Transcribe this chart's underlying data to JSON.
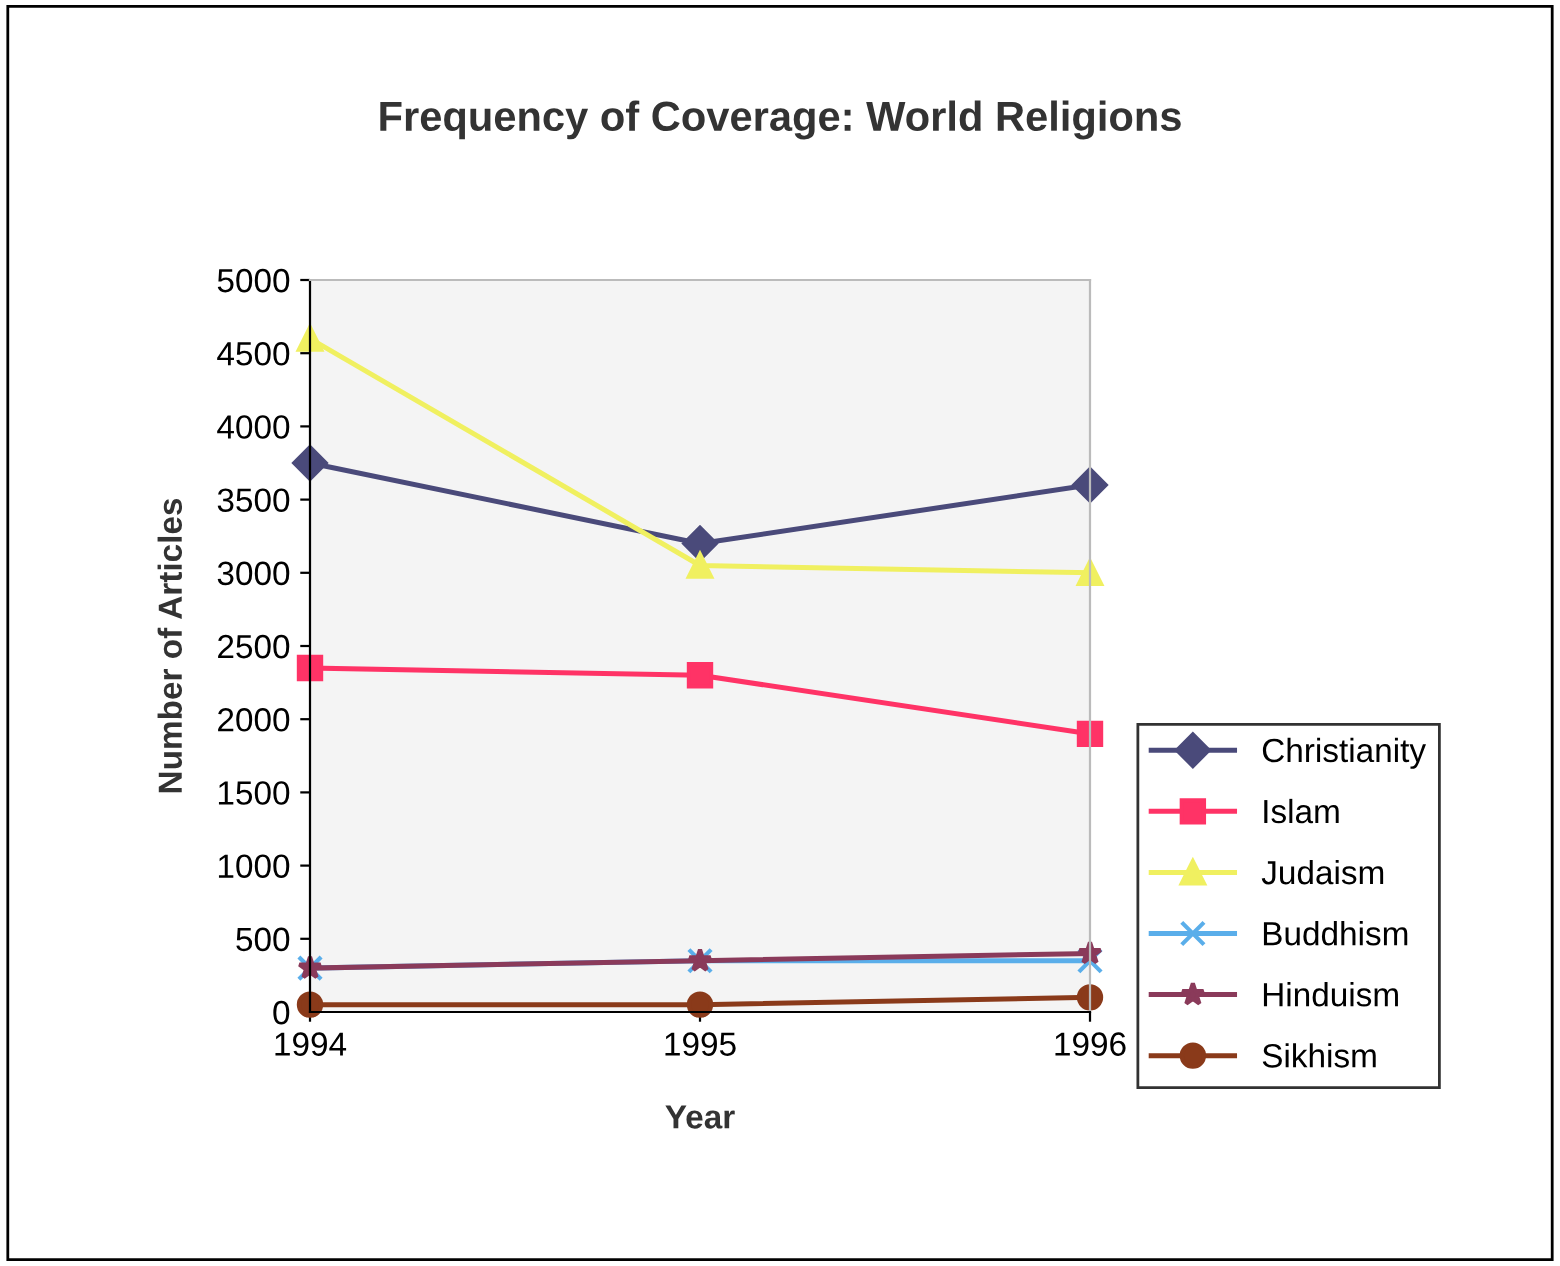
{
  "chart_data": {
    "type": "line",
    "title": "Frequency of Coverage: World Religions",
    "xlabel": "Year",
    "ylabel": "Number of Articles",
    "x": [
      1994,
      1995,
      1996
    ],
    "xlim": [
      1994,
      1996
    ],
    "xticks": [
      1994,
      1995,
      1996
    ],
    "ylim": [
      0,
      5000
    ],
    "yticks": [
      0,
      500,
      1000,
      1500,
      2000,
      2500,
      3000,
      3500,
      4000,
      4500,
      5000
    ],
    "grid": false,
    "legend": "right",
    "series": [
      {
        "name": "Christianity",
        "color": "#4a4a7a",
        "marker": "diamond",
        "values": [
          3750,
          3200,
          3600
        ]
      },
      {
        "name": "Islam",
        "color": "#ff3366",
        "marker": "square",
        "values": [
          2350,
          2300,
          1900
        ]
      },
      {
        "name": "Judaism",
        "color": "#f0f060",
        "marker": "triangle",
        "values": [
          4600,
          3050,
          3000
        ]
      },
      {
        "name": "Buddhism",
        "color": "#5aaeea",
        "marker": "cross",
        "values": [
          300,
          350,
          350
        ]
      },
      {
        "name": "Hinduism",
        "color": "#8a3a5a",
        "marker": "star",
        "values": [
          300,
          350,
          400
        ]
      },
      {
        "name": "Sikhism",
        "color": "#8a3a1a",
        "marker": "circle",
        "values": [
          50,
          50,
          100
        ]
      }
    ]
  }
}
